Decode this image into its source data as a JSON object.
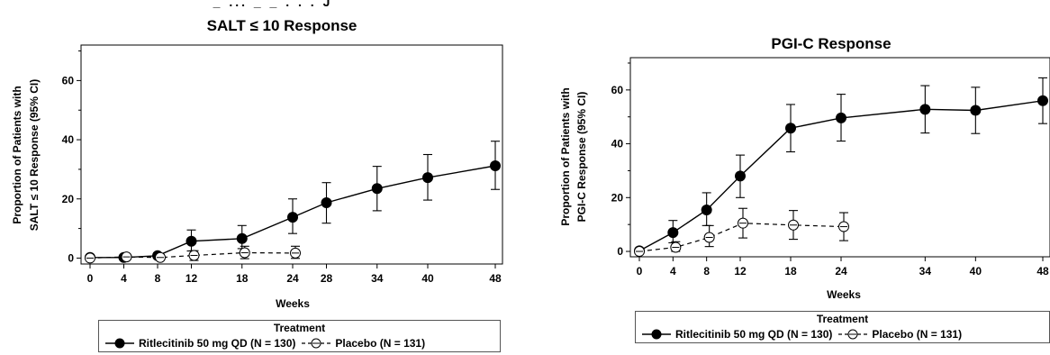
{
  "chart_data": [
    {
      "type": "line",
      "title": "SALT ≤ 10 Response",
      "title_overflow": "_ ... _ _ . . . J",
      "ylabel_lines": [
        "Proportion of Patients with",
        "SALT ≤ 10 Response (95% CI)"
      ],
      "xlabel": "Weeks",
      "x_ticks": [
        0,
        4,
        8,
        12,
        18,
        24,
        28,
        34,
        40,
        48
      ],
      "y_ticks": [
        0,
        20,
        40,
        60
      ],
      "ylim": [
        -2,
        72
      ],
      "xlim": [
        0,
        48
      ],
      "grid": false,
      "series": [
        {
          "name": "Ritlecitinib 50 mg QD (N = 130)",
          "style": "solid-filled",
          "x": [
            0,
            4,
            8,
            12,
            18,
            24,
            28,
            34,
            40,
            48
          ],
          "y": [
            0.2,
            0.2,
            0.8,
            5.7,
            6.6,
            13.8,
            18.7,
            23.5,
            27.2,
            31.2
          ],
          "ci_low": [
            null,
            null,
            0.1,
            2.4,
            3.2,
            8.3,
            11.8,
            16.0,
            19.6,
            23.2
          ],
          "ci_high": [
            null,
            null,
            1.8,
            9.5,
            11.0,
            20.0,
            25.5,
            31.0,
            35.0,
            39.5
          ]
        },
        {
          "name": "Placebo (N = 131)",
          "style": "dashed-open",
          "x": [
            0,
            4,
            8,
            12,
            18,
            24
          ],
          "y": [
            0.0,
            0.4,
            0.2,
            0.9,
            1.8,
            1.7
          ],
          "ci_low": [
            null,
            null,
            null,
            -0.8,
            -0.2,
            -0.1
          ],
          "ci_high": [
            null,
            null,
            null,
            2.5,
            4.0,
            4.0
          ]
        }
      ],
      "legend": {
        "title": "Treatment",
        "entries": [
          "Ritlecitinib 50 mg QD (N = 130)",
          "Placebo (N = 131)"
        ],
        "placement": "bottom"
      }
    },
    {
      "type": "line",
      "title": "PGI-C Response",
      "ylabel_lines": [
        "Proportion of Patients with",
        "PGI-C Response (95% CI)"
      ],
      "xlabel": "Weeks",
      "x_ticks": [
        0,
        4,
        8,
        12,
        18,
        24,
        34,
        40,
        48
      ],
      "y_ticks": [
        0,
        20,
        40,
        60
      ],
      "ylim": [
        -2,
        72
      ],
      "xlim": [
        0,
        48
      ],
      "grid": false,
      "series": [
        {
          "name": "Ritlecitinib 50 mg QD (N = 130)",
          "style": "solid-filled",
          "x": [
            0,
            4,
            8,
            12,
            18,
            24,
            34,
            40,
            48
          ],
          "y": [
            0.2,
            7.0,
            15.4,
            28.0,
            45.8,
            49.6,
            52.8,
            52.4,
            56.0
          ],
          "ci_low": [
            null,
            3.2,
            9.6,
            20.0,
            37.0,
            41.0,
            44.0,
            43.8,
            47.5
          ],
          "ci_high": [
            null,
            11.5,
            21.8,
            35.8,
            54.6,
            58.4,
            61.6,
            61.0,
            64.5
          ]
        },
        {
          "name": "Placebo (N = 131)",
          "style": "dashed-open",
          "x": [
            0,
            4,
            8,
            12,
            18,
            24
          ],
          "y": [
            0.0,
            1.5,
            5.2,
            10.5,
            9.8,
            9.2
          ],
          "ci_low": [
            null,
            0.0,
            1.8,
            5.0,
            4.5,
            4.0
          ],
          "ci_high": [
            null,
            3.6,
            9.6,
            16.0,
            15.2,
            14.4
          ]
        }
      ],
      "legend": {
        "title": "Treatment",
        "entries": [
          "Ritlecitinib 50 mg QD (N = 130)",
          "Placebo (N = 131)"
        ],
        "placement": "bottom"
      }
    }
  ]
}
